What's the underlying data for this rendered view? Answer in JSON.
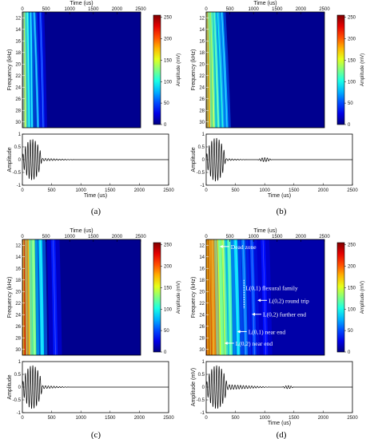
{
  "colorbar": {
    "label": "Amplitude (mV)",
    "ticks": [
      0,
      50,
      100,
      150,
      200,
      250
    ],
    "range": [
      0,
      255
    ]
  },
  "chart_data": [
    {
      "panel": "(a)",
      "type": "heatmap",
      "xlabel": "Time (us)",
      "ylabel": "Frequency (kHz)",
      "xlim": [
        0,
        2500
      ],
      "ylim": [
        11,
        31
      ],
      "xticks": [
        0,
        500,
        1000,
        1500,
        2000,
        2500
      ],
      "yticks": [
        12,
        14,
        16,
        18,
        20,
        22,
        24,
        26,
        28,
        30
      ],
      "background": "#00008f",
      "bands": [
        {
          "t_at_12": 15,
          "t_at_31": 35,
          "intensity": 0.9,
          "width": 8
        },
        {
          "t_at_12": 55,
          "t_at_31": 70,
          "intensity": 0.55,
          "width": 5
        },
        {
          "t_at_12": 110,
          "t_at_31": 150,
          "intensity": 0.4,
          "width": 5
        },
        {
          "t_at_12": 180,
          "t_at_31": 205,
          "intensity": 0.35,
          "width": 4
        },
        {
          "t_at_12": 250,
          "t_at_31": 330,
          "intensity": 0.3,
          "width": 5
        },
        {
          "t_at_12": 380,
          "t_at_31": 440,
          "intensity": 0.18,
          "width": 6
        }
      ],
      "waveform": {
        "xlabel": "Time (us)",
        "ylabel": "Amplitude",
        "xlim": [
          0,
          2500
        ],
        "ylim": [
          -1,
          1
        ],
        "xticks": [
          0,
          500,
          1000,
          1500,
          2000,
          2500
        ],
        "yticks": [
          -1,
          -0.5,
          0,
          0.5,
          1
        ],
        "burst_peak": 0.8,
        "burst_end": 330,
        "tail_amp": 0.05,
        "tail_end": 900,
        "echoes": []
      }
    },
    {
      "panel": "(b)",
      "type": "heatmap",
      "xlabel": "Time (us)",
      "ylabel": "Frequency (kHz)",
      "xlim": [
        0,
        2500
      ],
      "ylim": [
        11,
        31
      ],
      "xticks": [
        0,
        500,
        1000,
        1500,
        2000,
        2500
      ],
      "yticks": [
        12,
        14,
        16,
        18,
        20,
        22,
        24,
        26,
        28,
        30
      ],
      "background": "#00008f",
      "bands": [
        {
          "t_at_12": 15,
          "t_at_31": 40,
          "intensity": 0.95,
          "width": 9
        },
        {
          "t_at_12": 60,
          "t_at_31": 90,
          "intensity": 0.7,
          "width": 6
        },
        {
          "t_at_12": 115,
          "t_at_31": 170,
          "intensity": 0.55,
          "width": 6
        },
        {
          "t_at_12": 180,
          "t_at_31": 260,
          "intensity": 0.45,
          "width": 6
        },
        {
          "t_at_12": 260,
          "t_at_31": 360,
          "intensity": 0.4,
          "width": 6
        },
        {
          "t_at_12": 330,
          "t_at_31": 440,
          "intensity": 0.3,
          "width": 6
        }
      ],
      "waveform": {
        "xlabel": "Time (us)",
        "ylabel": "Amplitude",
        "xlim": [
          0,
          2500
        ],
        "ylim": [
          -1,
          1
        ],
        "xticks": [
          0,
          500,
          1000,
          1500,
          2000,
          2500
        ],
        "yticks": [
          -1,
          -0.5,
          0,
          0.5,
          1
        ],
        "burst_peak": 0.85,
        "burst_end": 330,
        "tail_amp": 0.04,
        "tail_end": 700,
        "echoes": [
          {
            "t": 1000,
            "amp": 0.08,
            "half_width": 120
          }
        ]
      }
    },
    {
      "panel": "(c)",
      "type": "heatmap",
      "xlabel": "Time (us)",
      "ylabel": "Frequency (kHz)",
      "xlim": [
        0,
        2500
      ],
      "ylim": [
        11,
        31
      ],
      "xticks": [
        0,
        500,
        1000,
        1500,
        2000,
        2500
      ],
      "yticks": [
        12,
        14,
        16,
        18,
        20,
        22,
        24,
        26,
        28,
        30
      ],
      "background": "#00008f",
      "bands": [
        {
          "t_at_12": 25,
          "t_at_31": 30,
          "intensity": 1.0,
          "width": 10
        },
        {
          "t_at_12": 80,
          "t_at_31": 95,
          "intensity": 0.9,
          "width": 10
        },
        {
          "t_at_12": 150,
          "t_at_31": 175,
          "intensity": 0.7,
          "width": 8
        },
        {
          "t_at_12": 230,
          "t_at_31": 260,
          "intensity": 0.5,
          "width": 7
        },
        {
          "t_at_12": 380,
          "t_at_31": 420,
          "intensity": 0.35,
          "width": 8
        },
        {
          "t_at_12": 650,
          "t_at_31": 700,
          "intensity": 0.15,
          "width": 10
        }
      ],
      "waveform": {
        "xlabel": "",
        "ylabel": "Amplitude",
        "xlim": [
          0,
          2500
        ],
        "ylim": [
          -1,
          1
        ],
        "xticks": [
          0,
          500,
          1000,
          1500,
          2000,
          2500
        ],
        "yticks": [
          -1,
          -0.5,
          0,
          0.5,
          1
        ],
        "burst_peak": 0.85,
        "burst_end": 340,
        "tail_amp": 0.06,
        "tail_end": 800,
        "echoes": []
      }
    },
    {
      "panel": "(d)",
      "type": "heatmap",
      "xlabel": "Time (us)",
      "ylabel": "Frequency (kHz)",
      "xlim": [
        0,
        2500
      ],
      "ylim": [
        11,
        31
      ],
      "xticks": [
        0,
        500,
        1000,
        1500,
        2000,
        2500
      ],
      "yticks": [
        12,
        14,
        16,
        18,
        20,
        22,
        24,
        26,
        28,
        30
      ],
      "background": "#0000a8",
      "bands": [
        {
          "t_at_12": 20,
          "t_at_31": 30,
          "intensity": 1.0,
          "width": 10
        },
        {
          "t_at_12": 70,
          "t_at_31": 90,
          "intensity": 1.0,
          "width": 10
        },
        {
          "t_at_12": 130,
          "t_at_31": 160,
          "intensity": 0.9,
          "width": 10
        },
        {
          "t_at_12": 200,
          "t_at_31": 240,
          "intensity": 0.8,
          "width": 9
        },
        {
          "t_at_12": 280,
          "t_at_31": 330,
          "intensity": 0.6,
          "width": 9
        },
        {
          "t_at_12": 360,
          "t_at_31": 420,
          "intensity": 0.55,
          "width": 8
        },
        {
          "t_at_12": 480,
          "t_at_31": 520,
          "intensity": 0.45,
          "width": 8
        },
        {
          "t_at_12": 620,
          "t_at_31": 680,
          "intensity": 0.35,
          "width": 8
        },
        {
          "t_at_12": 780,
          "t_at_31": 840,
          "intensity": 0.25,
          "width": 8
        },
        {
          "t_at_12": 960,
          "t_at_31": 1020,
          "intensity": 0.2,
          "width": 8
        },
        {
          "t_at_12": 1200,
          "t_at_31": 1260,
          "intensity": 0.14,
          "width": 10
        }
      ],
      "annotations": [
        {
          "text": "Dead zone",
          "x": 520,
          "y": 12.5,
          "arrow": "left"
        },
        {
          "text": "L(0,1) flexural family",
          "x": 830,
          "y": 19.6,
          "arrow": "none"
        },
        {
          "text": "L(0,2) round trip",
          "x": 1320,
          "y": 21.8,
          "arrow": "left"
        },
        {
          "text": "L(0,2) further end",
          "x": 1200,
          "y": 24.2,
          "arrow": "left"
        },
        {
          "text": "L(0,1) near end",
          "x": 890,
          "y": 27.2,
          "arrow": "left"
        },
        {
          "text": "L(0,2) near end",
          "x": 620,
          "y": 29.2,
          "arrow": "left"
        }
      ],
      "marker_line": {
        "t": 800,
        "f_from": 18,
        "f_to": 23
      },
      "waveform": {
        "xlabel": "Time (us)",
        "ylabel": "Amplitude (mV)",
        "xlim": [
          0,
          2500
        ],
        "ylim": [
          -1,
          1
        ],
        "xticks": [
          0,
          500,
          1000,
          1500,
          2000,
          2500
        ],
        "yticks": [
          -1,
          -0.5,
          0,
          0.5,
          1
        ],
        "burst_peak": 0.85,
        "burst_end": 360,
        "tail_amp": 0.1,
        "tail_end": 1100,
        "echoes": [
          {
            "t": 1400,
            "amp": 0.06,
            "half_width": 100
          }
        ]
      }
    }
  ]
}
